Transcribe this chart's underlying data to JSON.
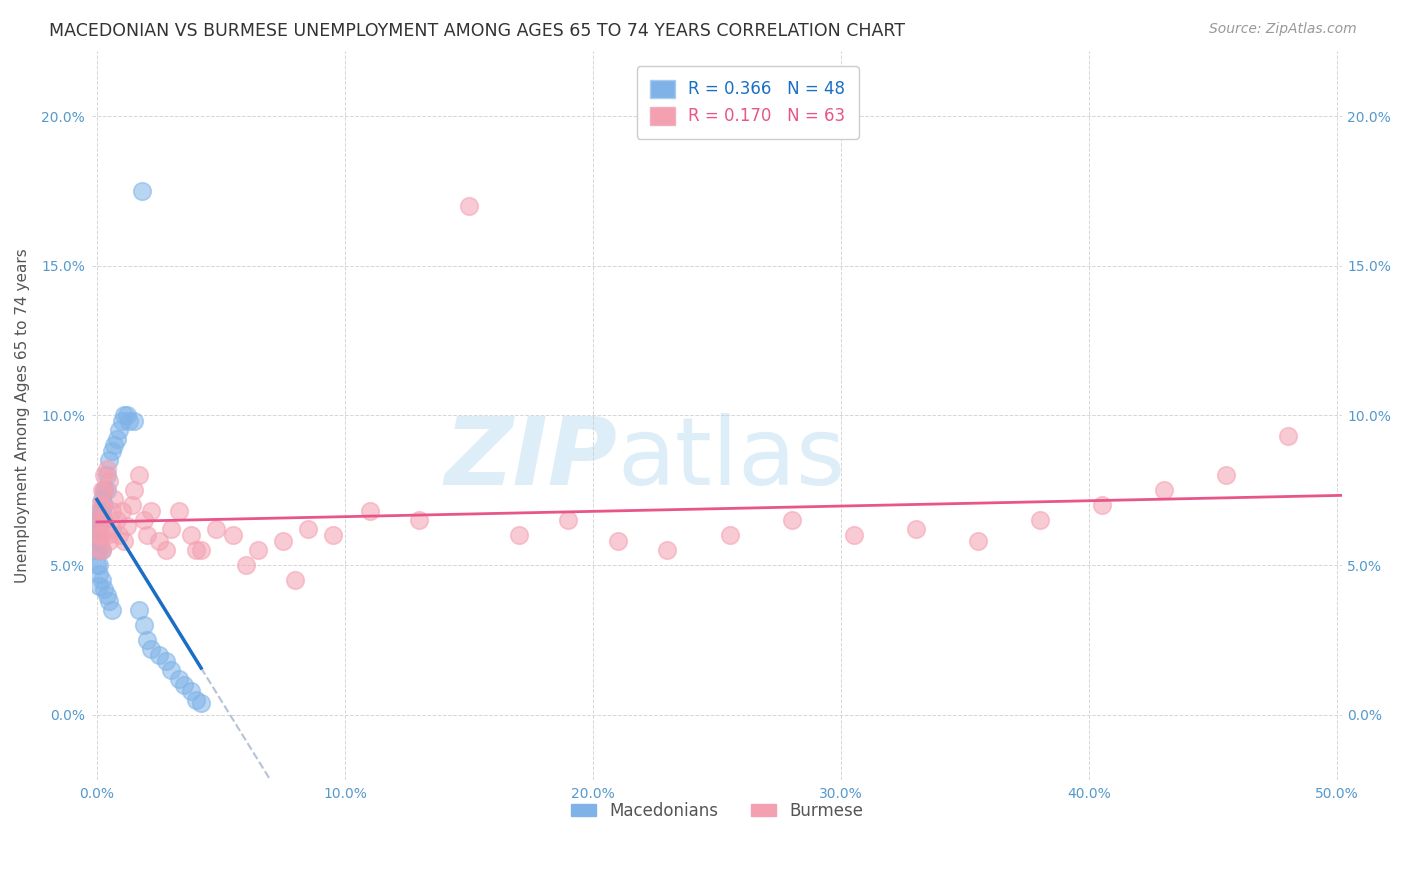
{
  "title": "MACEDONIAN VS BURMESE UNEMPLOYMENT AMONG AGES 65 TO 74 YEARS CORRELATION CHART",
  "source": "Source: ZipAtlas.com",
  "ylabel": "Unemployment Among Ages 65 to 74 years",
  "xlim": [
    -0.002,
    0.502
  ],
  "ylim": [
    -0.022,
    0.222
  ],
  "xticks": [
    0.0,
    0.1,
    0.2,
    0.3,
    0.4,
    0.5
  ],
  "yticks": [
    0.0,
    0.05,
    0.1,
    0.15,
    0.2
  ],
  "xtick_labels": [
    "0.0%",
    "10.0%",
    "20.0%",
    "30.0%",
    "40.0%",
    "50.0%"
  ],
  "ytick_labels": [
    "0.0%",
    "5.0%",
    "10.0%",
    "15.0%",
    "20.0%"
  ],
  "macedonian_x": [
    0.0,
    0.0,
    0.0,
    0.0,
    0.001,
    0.001,
    0.001,
    0.001,
    0.001,
    0.001,
    0.001,
    0.002,
    0.002,
    0.002,
    0.002,
    0.002,
    0.003,
    0.003,
    0.003,
    0.003,
    0.004,
    0.004,
    0.004,
    0.005,
    0.005,
    0.006,
    0.006,
    0.007,
    0.008,
    0.009,
    0.01,
    0.011,
    0.012,
    0.013,
    0.015,
    0.017,
    0.019,
    0.02,
    0.022,
    0.025,
    0.028,
    0.03,
    0.033,
    0.035,
    0.038,
    0.04,
    0.042,
    0.018
  ],
  "macedonian_y": [
    0.06,
    0.065,
    0.055,
    0.05,
    0.068,
    0.062,
    0.058,
    0.055,
    0.05,
    0.047,
    0.043,
    0.072,
    0.068,
    0.065,
    0.055,
    0.045,
    0.075,
    0.07,
    0.065,
    0.042,
    0.08,
    0.075,
    0.04,
    0.085,
    0.038,
    0.088,
    0.035,
    0.09,
    0.092,
    0.095,
    0.098,
    0.1,
    0.1,
    0.098,
    0.098,
    0.035,
    0.03,
    0.025,
    0.022,
    0.02,
    0.018,
    0.015,
    0.012,
    0.01,
    0.008,
    0.005,
    0.004,
    0.175
  ],
  "burmese_x": [
    0.0,
    0.0,
    0.001,
    0.001,
    0.001,
    0.001,
    0.002,
    0.002,
    0.002,
    0.002,
    0.003,
    0.003,
    0.003,
    0.004,
    0.004,
    0.005,
    0.005,
    0.006,
    0.006,
    0.007,
    0.008,
    0.009,
    0.01,
    0.011,
    0.012,
    0.014,
    0.015,
    0.017,
    0.019,
    0.02,
    0.022,
    0.025,
    0.028,
    0.03,
    0.033,
    0.038,
    0.042,
    0.048,
    0.055,
    0.065,
    0.075,
    0.085,
    0.095,
    0.11,
    0.13,
    0.15,
    0.17,
    0.19,
    0.21,
    0.23,
    0.255,
    0.28,
    0.305,
    0.33,
    0.355,
    0.38,
    0.405,
    0.43,
    0.455,
    0.48,
    0.04,
    0.06,
    0.08
  ],
  "burmese_y": [
    0.065,
    0.06,
    0.07,
    0.055,
    0.065,
    0.06,
    0.075,
    0.07,
    0.06,
    0.055,
    0.08,
    0.075,
    0.065,
    0.082,
    0.06,
    0.078,
    0.058,
    0.068,
    0.062,
    0.072,
    0.065,
    0.06,
    0.068,
    0.058,
    0.063,
    0.07,
    0.075,
    0.08,
    0.065,
    0.06,
    0.068,
    0.058,
    0.055,
    0.062,
    0.068,
    0.06,
    0.055,
    0.062,
    0.06,
    0.055,
    0.058,
    0.062,
    0.06,
    0.068,
    0.065,
    0.17,
    0.06,
    0.065,
    0.058,
    0.055,
    0.06,
    0.065,
    0.06,
    0.062,
    0.058,
    0.065,
    0.07,
    0.075,
    0.08,
    0.093,
    0.055,
    0.05,
    0.045
  ],
  "macedonian_color": "#7fb3e8",
  "burmese_color": "#f4a0b0",
  "macedonian_line_color": "#1a6fc4",
  "burmese_line_color": "#e8558a",
  "dashed_line_color": "#a8b8d0",
  "R_macedonian": 0.366,
  "N_macedonian": 48,
  "R_burmese": 0.17,
  "N_burmese": 63,
  "watermark_zip": "ZIP",
  "watermark_atlas": "atlas",
  "watermark_color": "#ddeef8",
  "background_color": "#ffffff",
  "grid_color": "#cccccc",
  "title_fontsize": 12.5,
  "axis_label_fontsize": 11,
  "tick_fontsize": 10,
  "legend_fontsize": 12,
  "source_fontsize": 10
}
